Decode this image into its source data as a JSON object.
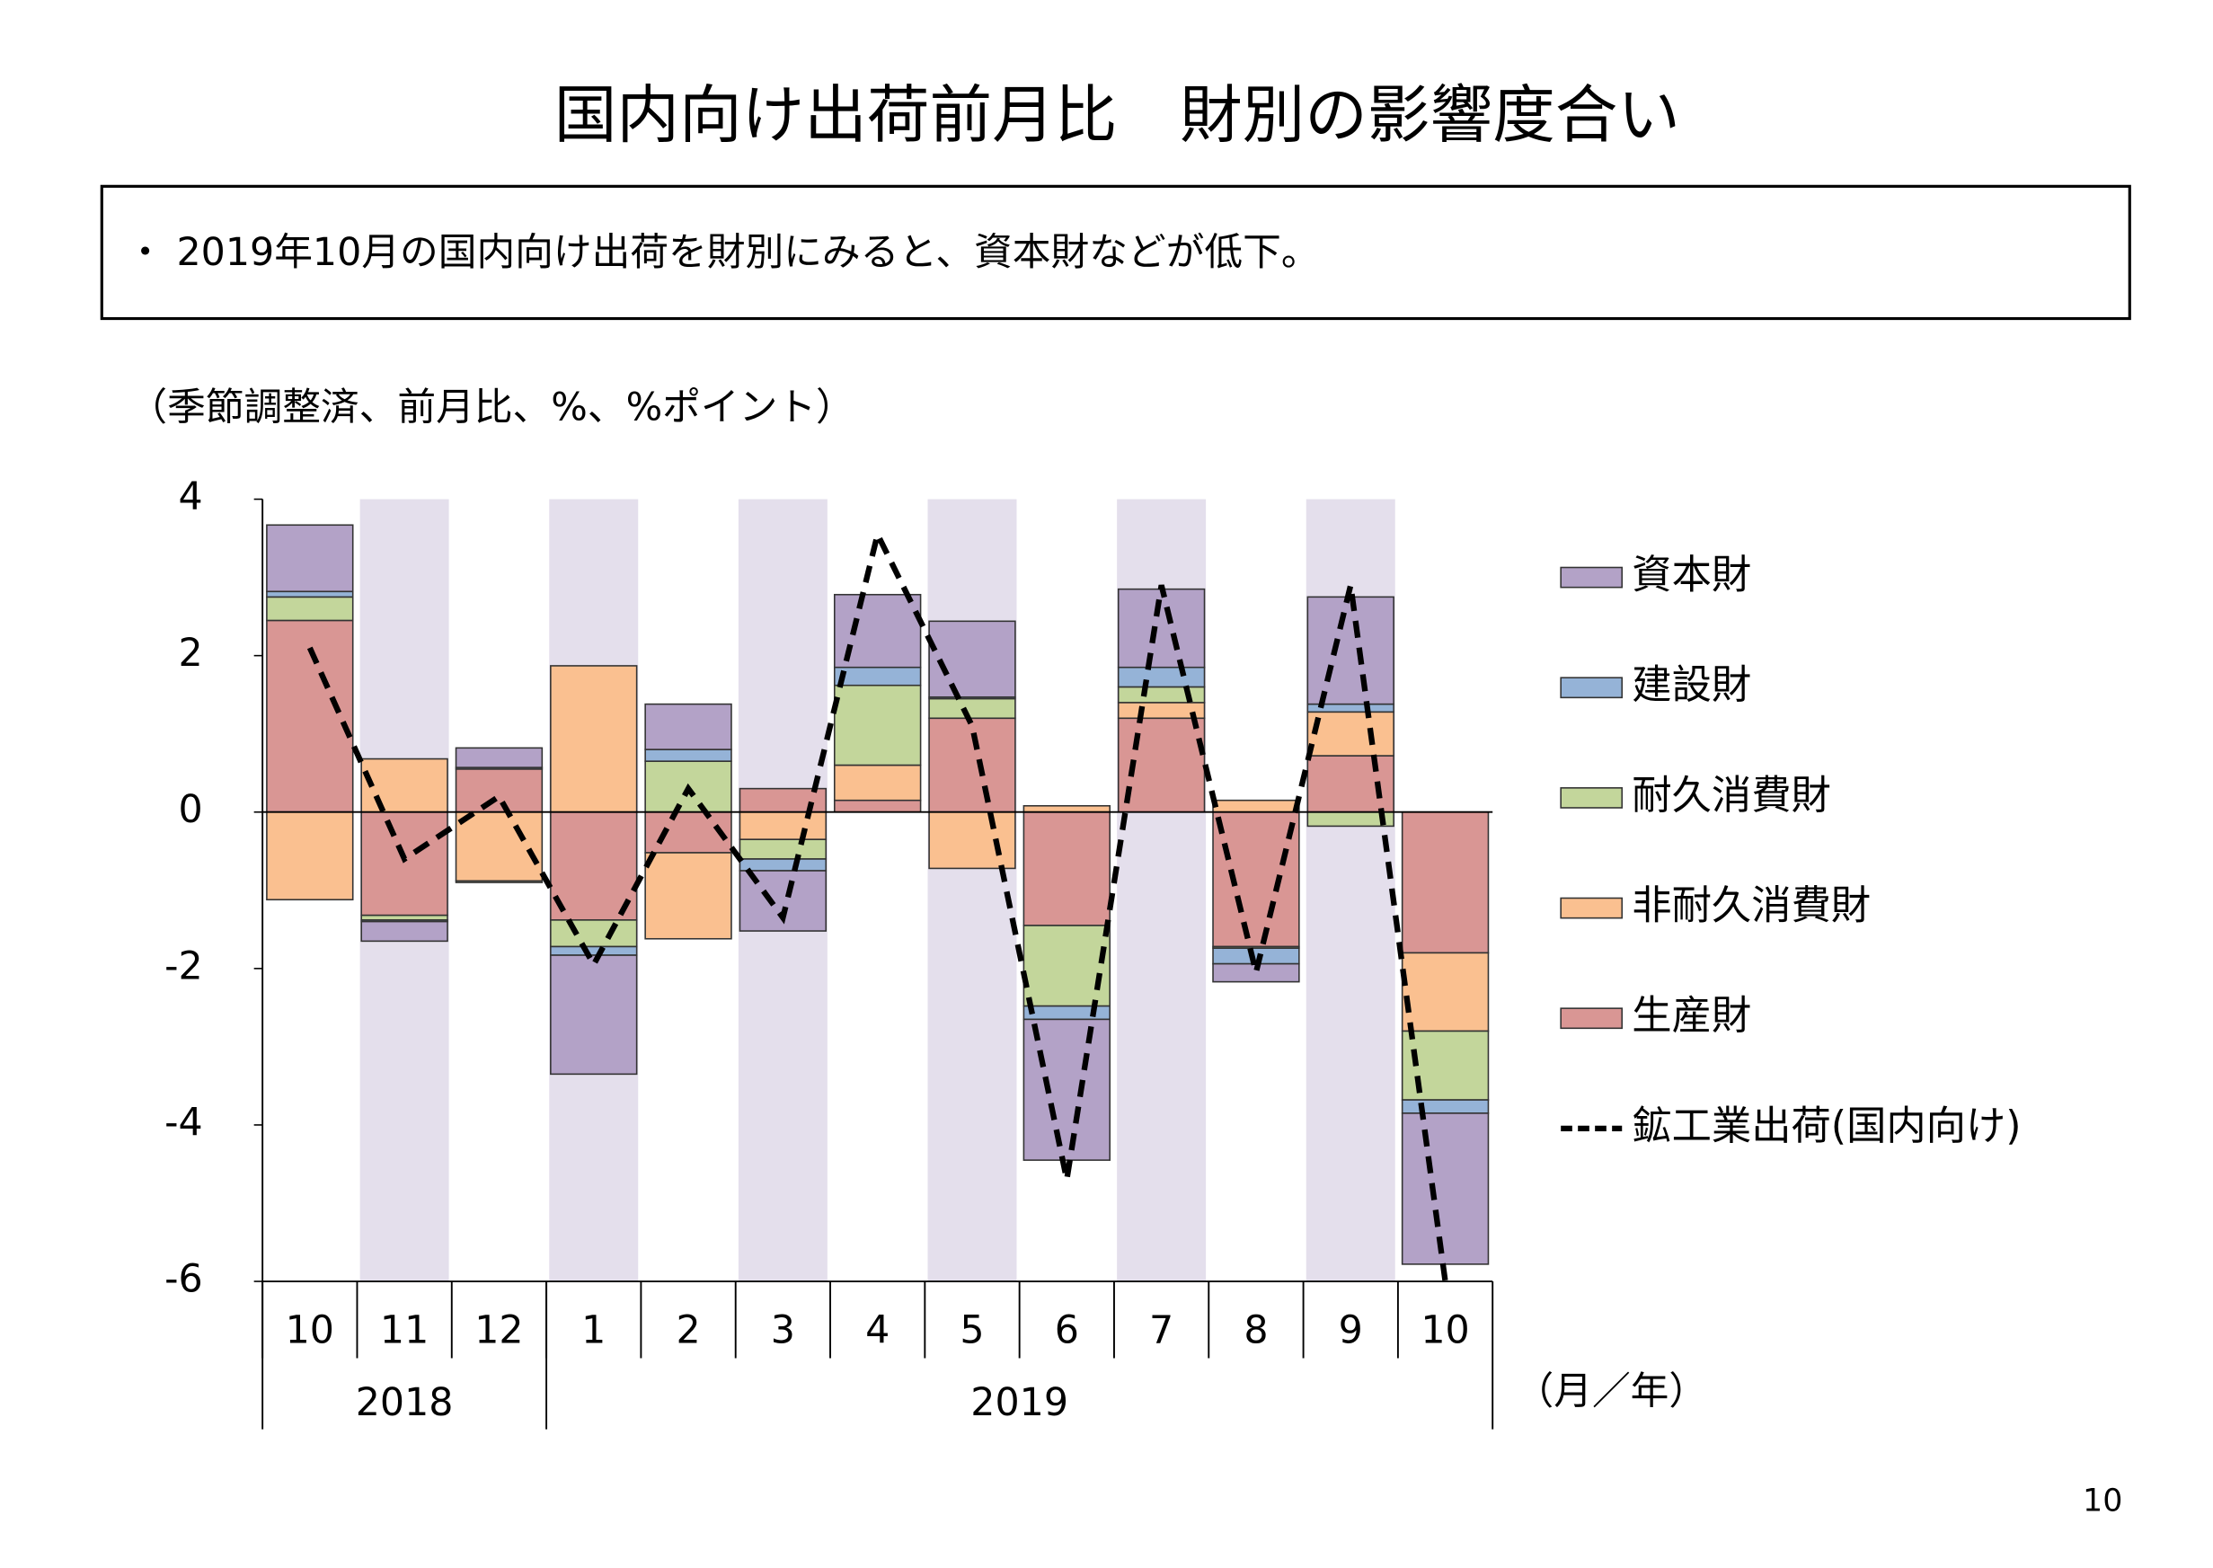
{
  "chart_data": {
    "type": "stacked_bar",
    "title": "国内向け出荷前月比　財別の影響度合い",
    "note": "・ 2019年10月の国内向け出荷を財別にみると、資本財などが低下。",
    "ylabel": "（季節調整済、前月比、%、%ポイント）",
    "xlabel": "（月／年）",
    "page_number": "10",
    "categories": [
      "10",
      "11",
      "12",
      "1",
      "2",
      "3",
      "4",
      "5",
      "6",
      "7",
      "8",
      "9",
      "10"
    ],
    "years": [
      "2018",
      null,
      null,
      "2019",
      null,
      null,
      null,
      null,
      null,
      null,
      null,
      null,
      null
    ],
    "ylim": [
      -6,
      4
    ],
    "yticks": [
      4,
      2,
      0,
      -2,
      -4,
      -6
    ],
    "series": [
      {
        "name": "資本財",
        "color": "#b3a2c7",
        "values": [
          0.85,
          -0.25,
          0.25,
          -1.52,
          0.58,
          -0.77,
          0.93,
          0.97,
          -1.8,
          1.0,
          -0.23,
          1.37,
          -1.93
        ]
      },
      {
        "name": "建設財",
        "color": "#95b3d7",
        "values": [
          0.07,
          -0.02,
          0.02,
          -0.11,
          0.15,
          -0.15,
          0.23,
          0.02,
          -0.17,
          0.25,
          -0.2,
          0.1,
          -0.17
        ]
      },
      {
        "name": "耐久消費財",
        "color": "#c3d69b",
        "values": [
          0.3,
          -0.06,
          -0.02,
          -0.34,
          0.65,
          -0.25,
          1.02,
          0.25,
          -1.03,
          0.2,
          -0.02,
          -0.18,
          -0.88
        ]
      },
      {
        "name": "非耐久消費財",
        "color": "#fac090",
        "values": [
          -1.12,
          0.68,
          -0.88,
          1.87,
          -1.1,
          -0.35,
          0.45,
          -0.72,
          0.08,
          0.2,
          0.15,
          0.56,
          -1.0
        ]
      },
      {
        "name": "生産財",
        "color": "#d99694",
        "values": [
          2.45,
          -1.32,
          0.55,
          -1.38,
          -0.52,
          0.3,
          0.15,
          1.2,
          -1.45,
          1.2,
          -1.72,
          0.72,
          -1.8
        ]
      }
    ],
    "line": {
      "name": "鉱工業出荷(国内向け)",
      "color": "#000000",
      "dashed": true,
      "values": [
        2.1,
        -0.6,
        0.2,
        -1.95,
        0.3,
        -1.35,
        3.55,
        1.1,
        -4.7,
        2.9,
        -2.05,
        2.9,
        -6.0
      ]
    }
  }
}
